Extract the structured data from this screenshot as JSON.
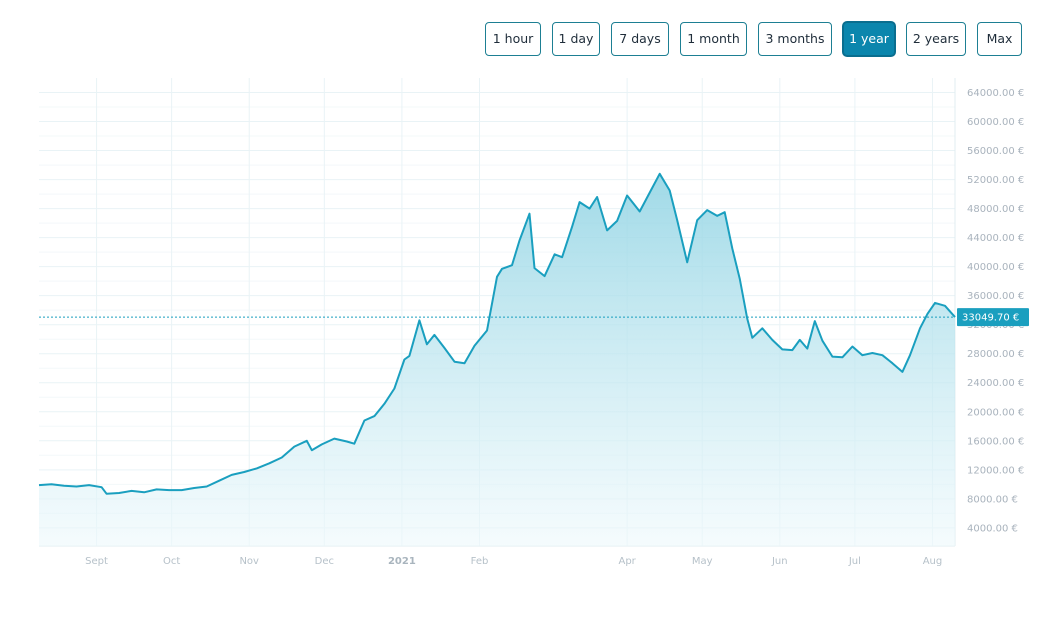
{
  "range_selector": {
    "options": [
      "1 hour",
      "1 day",
      "7 days",
      "1 month",
      "3 months",
      "1 year",
      "2 years",
      "Max"
    ],
    "selected": "1 year"
  },
  "colors": {
    "line": "#1a9fbf",
    "fill_top": "#8fd3e3",
    "fill_bottom": "#eef9fc",
    "grid": "#e9f3f6",
    "current_label_bg": "#1a9fbf",
    "active_button_bg": "#0b86ad"
  },
  "chart_data": {
    "type": "area",
    "title": "",
    "xlabel": "",
    "ylabel": "",
    "currency": "€",
    "x_range": [
      "2020-08-09",
      "2021-08-10"
    ],
    "ylim": [
      1500,
      66000
    ],
    "y_ticks": [
      4000,
      8000,
      12000,
      16000,
      20000,
      24000,
      28000,
      32000,
      36000,
      40000,
      44000,
      48000,
      52000,
      56000,
      60000,
      64000
    ],
    "y_tick_labels": [
      "4000.00 €",
      "8000.00 €",
      "12000.00 €",
      "16000.00 €",
      "20000.00 €",
      "24000.00 €",
      "28000.00 €",
      "32000.00 €",
      "36000.00 €",
      "40000.00 €",
      "44000.00 €",
      "48000.00 €",
      "52000.00 €",
      "56000.00 €",
      "60000.00 €",
      "64000.00 €"
    ],
    "x_ticks": [
      {
        "date": "2020-09-01",
        "label": "Sept",
        "bold": false
      },
      {
        "date": "2020-10-01",
        "label": "Oct",
        "bold": false
      },
      {
        "date": "2020-11-01",
        "label": "Nov",
        "bold": false
      },
      {
        "date": "2020-12-01",
        "label": "Dec",
        "bold": false
      },
      {
        "date": "2021-01-01",
        "label": "2021",
        "bold": true
      },
      {
        "date": "2021-02-01",
        "label": "Feb",
        "bold": false
      },
      {
        "date": "2021-04-01",
        "label": "Apr",
        "bold": false
      },
      {
        "date": "2021-05-01",
        "label": "May",
        "bold": false
      },
      {
        "date": "2021-06-01",
        "label": "Jun",
        "bold": false
      },
      {
        "date": "2021-07-01",
        "label": "Jul",
        "bold": false
      },
      {
        "date": "2021-08-01",
        "label": "Aug",
        "bold": false
      }
    ],
    "current_value": 33049.7,
    "current_value_label": "33049.70 €",
    "series": [
      {
        "x": [
          "2020-08-09",
          "2020-08-14",
          "2020-08-19",
          "2020-08-24",
          "2020-08-29",
          "2020-09-03",
          "2020-09-05",
          "2020-09-10",
          "2020-09-15",
          "2020-09-20",
          "2020-09-25",
          "2020-09-30",
          "2020-10-05",
          "2020-10-10",
          "2020-10-15",
          "2020-10-20",
          "2020-10-25",
          "2020-10-30",
          "2020-11-04",
          "2020-11-09",
          "2020-11-14",
          "2020-11-19",
          "2020-11-24",
          "2020-11-26",
          "2020-11-30",
          "2020-12-05",
          "2020-12-10",
          "2020-12-13",
          "2020-12-17",
          "2020-12-21",
          "2020-12-25",
          "2020-12-29",
          "2021-01-02",
          "2021-01-04",
          "2021-01-08",
          "2021-01-11",
          "2021-01-14",
          "2021-01-18",
          "2021-01-22",
          "2021-01-26",
          "2021-01-30",
          "2021-02-04",
          "2021-02-08",
          "2021-02-10",
          "2021-02-14",
          "2021-02-17",
          "2021-02-21",
          "2021-02-23",
          "2021-02-27",
          "2021-03-03",
          "2021-03-06",
          "2021-03-10",
          "2021-03-13",
          "2021-03-17",
          "2021-03-20",
          "2021-03-24",
          "2021-03-28",
          "2021-04-01",
          "2021-04-06",
          "2021-04-10",
          "2021-04-14",
          "2021-04-18",
          "2021-04-21",
          "2021-04-25",
          "2021-04-29",
          "2021-05-03",
          "2021-05-07",
          "2021-05-10",
          "2021-05-13",
          "2021-05-16",
          "2021-05-19",
          "2021-05-21",
          "2021-05-25",
          "2021-05-29",
          "2021-06-02",
          "2021-06-06",
          "2021-06-09",
          "2021-06-12",
          "2021-06-15",
          "2021-06-18",
          "2021-06-22",
          "2021-06-26",
          "2021-06-30",
          "2021-07-04",
          "2021-07-08",
          "2021-07-12",
          "2021-07-16",
          "2021-07-20",
          "2021-07-23",
          "2021-07-27",
          "2021-07-30",
          "2021-08-02",
          "2021-08-06",
          "2021-08-10"
        ],
        "values": [
          9900,
          10000,
          9800,
          9700,
          9900,
          9600,
          8700,
          8800,
          9100,
          8900,
          9300,
          9200,
          9200,
          9500,
          9700,
          10500,
          11300,
          11700,
          12200,
          12900,
          13700,
          15200,
          16000,
          14700,
          15500,
          16300,
          15900,
          15600,
          18800,
          19400,
          21100,
          23200,
          27200,
          27700,
          32600,
          29300,
          30600,
          28800,
          26900,
          26700,
          29100,
          31200,
          38600,
          39700,
          40200,
          43600,
          47300,
          39800,
          38700,
          41700,
          41300,
          45500,
          48900,
          48000,
          49600,
          45000,
          46300,
          49800,
          47600,
          50200,
          52800,
          50500,
          46400,
          40600,
          46400,
          47800,
          47000,
          47500,
          42500,
          38300,
          32800,
          30200,
          31500,
          29900,
          28600,
          28500,
          29900,
          28700,
          32500,
          29800,
          27600,
          27500,
          29000,
          27800,
          28100,
          27800,
          26700,
          25500,
          27800,
          31500,
          33500,
          35000,
          34600,
          33049.7
        ]
      }
    ]
  }
}
